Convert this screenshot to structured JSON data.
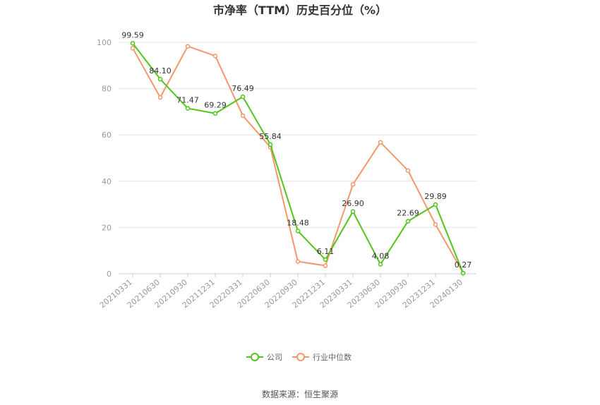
{
  "chart_data": {
    "type": "line",
    "title": "市净率（TTM）历史百分位（%）",
    "categories": [
      "20210331",
      "20210630",
      "20210930",
      "20211231",
      "20220331",
      "20220630",
      "20220930",
      "20221231",
      "20230331",
      "20230630",
      "20230930",
      "20231231",
      "20240130"
    ],
    "series": [
      {
        "name": "公司",
        "color": "#52c41a",
        "values": [
          99.59,
          84.1,
          71.47,
          69.29,
          76.49,
          55.84,
          18.48,
          6.11,
          26.9,
          4.08,
          22.69,
          29.89,
          0.27
        ],
        "labels": [
          "99.59",
          "84.10",
          "71.47",
          "69.29",
          "76.49",
          "55.84",
          "18.48",
          "6.11",
          "26.90",
          "4.08",
          "22.69",
          "29.89",
          "0.27"
        ]
      },
      {
        "name": "行业中位数",
        "color": "#f4976c",
        "values": [
          97.5,
          76.2,
          98.3,
          94.1,
          68.3,
          54.7,
          5.3,
          3.5,
          38.6,
          56.8,
          44.6,
          21.3,
          0.4
        ]
      }
    ],
    "ylim": [
      0,
      100
    ],
    "yticks": [
      "0",
      "20",
      "40",
      "60",
      "80",
      "100"
    ],
    "grid": true,
    "legend_position": "bottom"
  },
  "source": "数据来源：恒生聚源"
}
